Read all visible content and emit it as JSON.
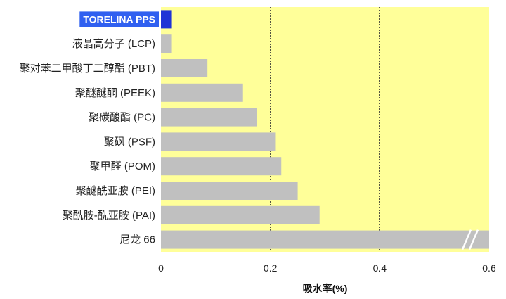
{
  "colors": {
    "plot_background": "#ffff99",
    "bar_default": "#c0c0c0",
    "bar_highlight": "#1f33d6",
    "label_highlight_bg": "#3060f0",
    "gridline": "#333333"
  },
  "chart_data": {
    "type": "bar",
    "orientation": "horizontal",
    "title": "",
    "xlabel": "吸水率(%)",
    "ylabel": "",
    "xlim": [
      0,
      0.6
    ],
    "x_ticks": [
      "0",
      "0.2",
      "0.4",
      "0.6"
    ],
    "x_tick_values": [
      0,
      0.2,
      0.4,
      0.6
    ],
    "gridlines_at": [
      0.2,
      0.4
    ],
    "grid_style": "dashed",
    "categories": [
      "TORELINA PPS",
      "液晶高分子 (LCP)",
      "聚对苯二甲酸丁二醇酯 (PBT)",
      "聚醚醚酮 (PEEK)",
      "聚碳酸酯 (PC)",
      "聚砜 (PSF)",
      "聚甲醛 (POM)",
      "聚醚酰亚胺 (PEI)",
      "聚酰胺-酰亚胺 (PAI)",
      "尼龙 66"
    ],
    "values": [
      0.02,
      0.02,
      0.085,
      0.15,
      0.175,
      0.21,
      0.22,
      0.25,
      0.29,
      0.6
    ],
    "highlight_index": 0,
    "broken_bar_index": 9
  }
}
